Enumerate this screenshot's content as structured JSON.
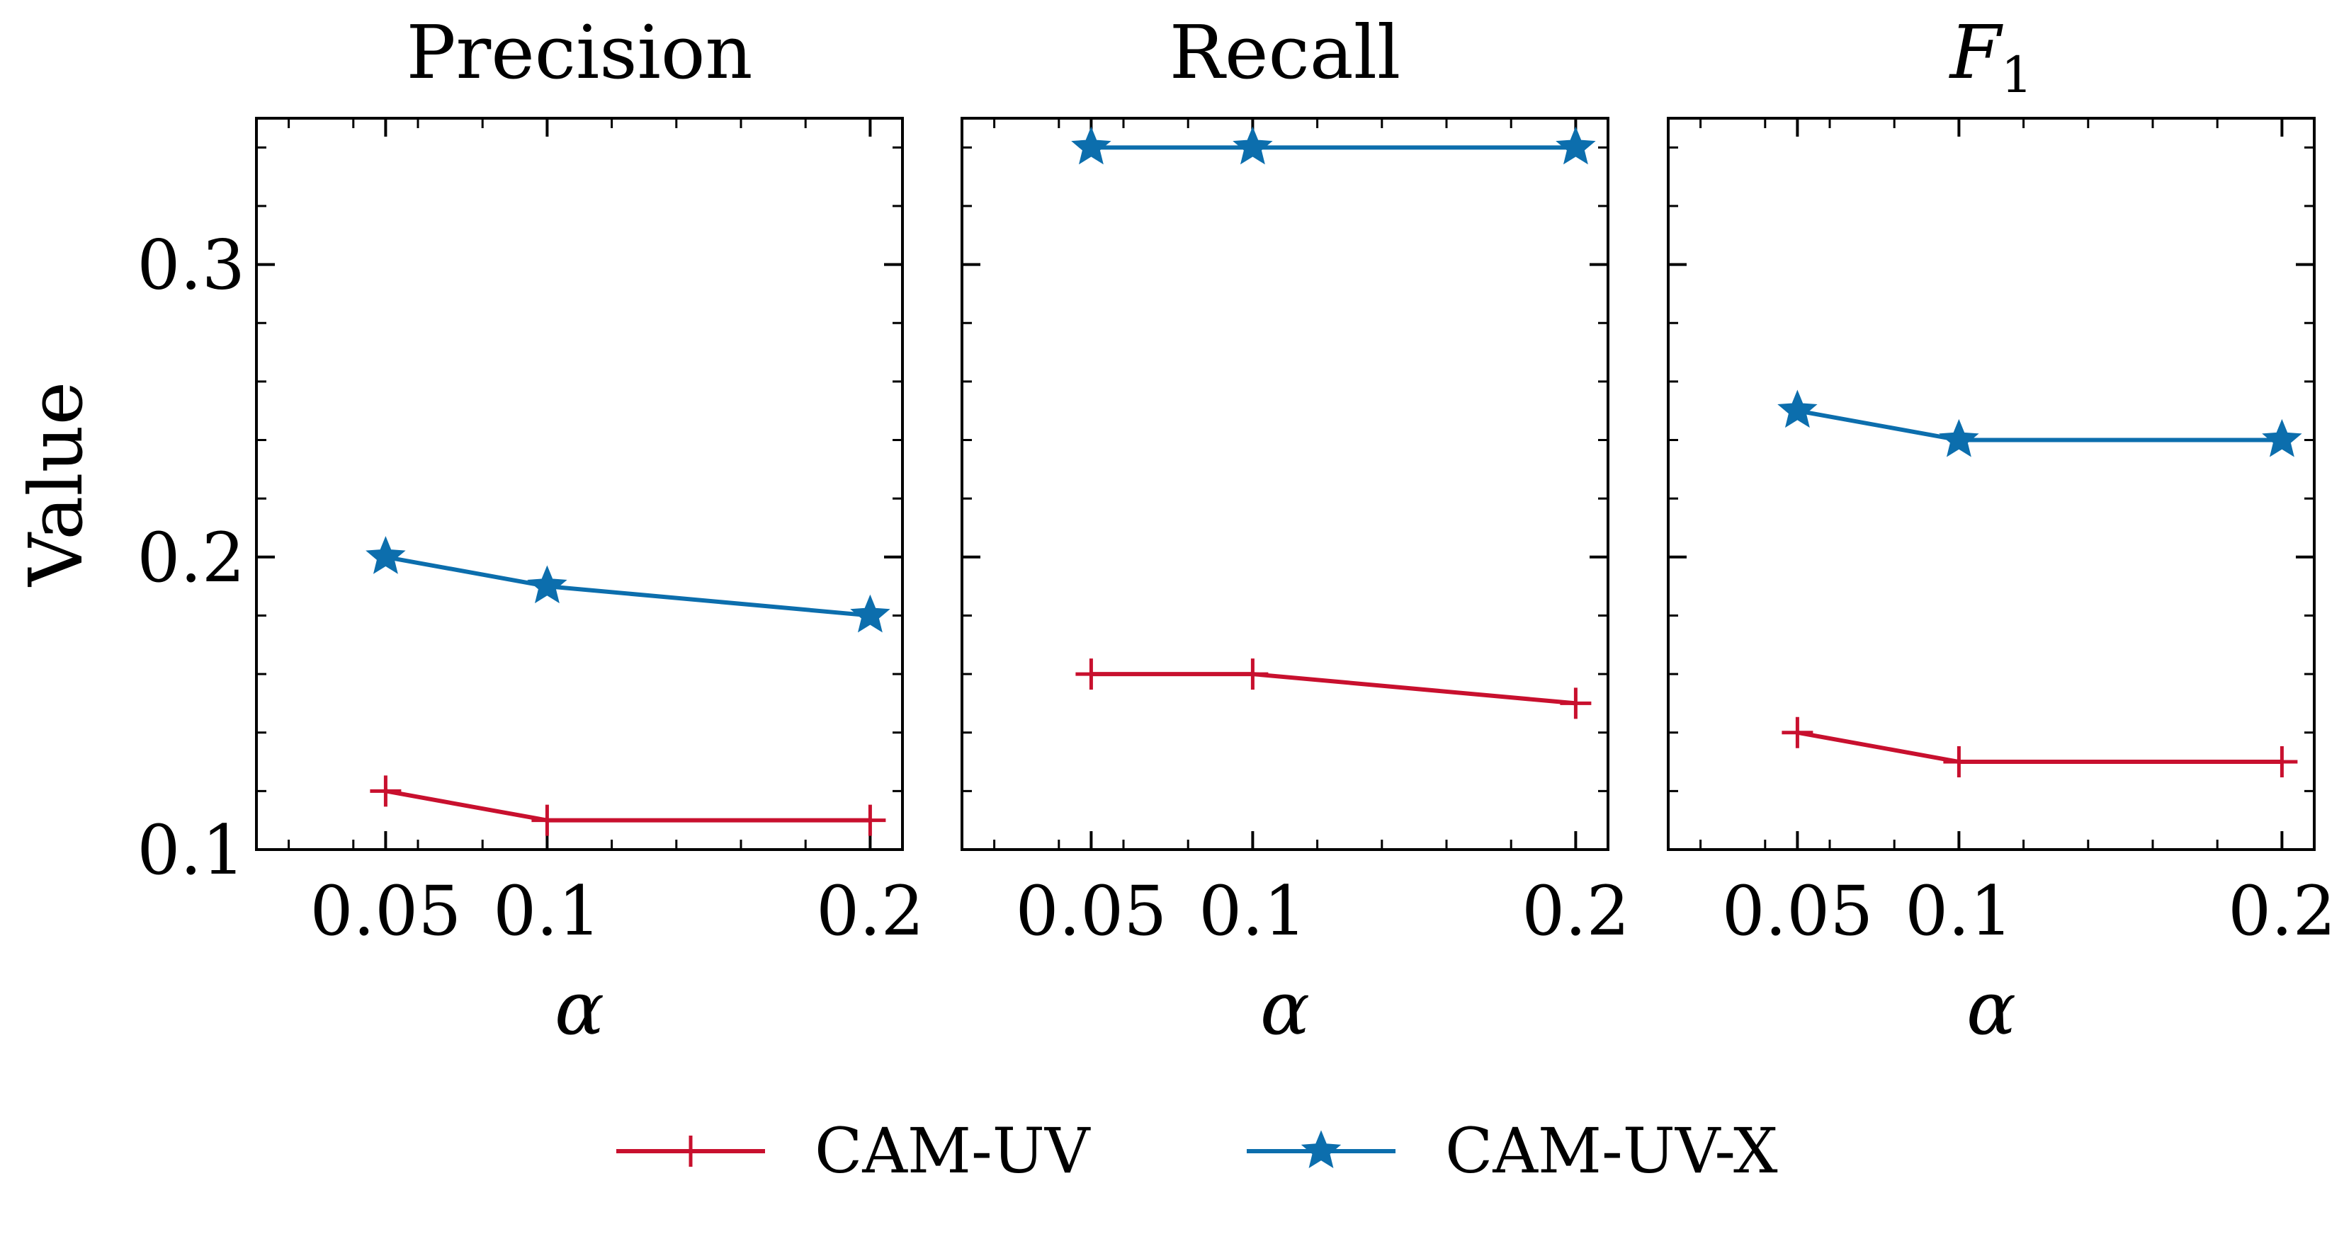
{
  "chart_data": [
    {
      "type": "line",
      "title": "Precision",
      "title_parts": null,
      "xlabel": "α",
      "ylabel": "Value",
      "x": [
        0.05,
        0.1,
        0.2
      ],
      "x_tick_labels": [
        "0.05",
        "0.1",
        "0.2"
      ],
      "xlim": [
        0.01,
        0.21
      ],
      "ylim": [
        0.1,
        0.35
      ],
      "y_ticks": [
        0.1,
        0.2,
        0.3
      ],
      "y_tick_labels": [
        "0.1",
        "0.2",
        "0.3"
      ],
      "series": [
        {
          "name": "CAM-UV",
          "values": [
            0.12,
            0.11,
            0.11
          ],
          "color": "#c8102e",
          "marker": "plus"
        },
        {
          "name": "CAM-UV-X",
          "values": [
            0.2,
            0.19,
            0.18
          ],
          "color": "#0c6ead",
          "marker": "star"
        }
      ]
    },
    {
      "type": "line",
      "title": "Recall",
      "xlabel": "α",
      "ylabel": "",
      "x": [
        0.05,
        0.1,
        0.2
      ],
      "x_tick_labels": [
        "0.05",
        "0.1",
        "0.2"
      ],
      "xlim": [
        0.01,
        0.21
      ],
      "ylim": [
        0.1,
        0.35
      ],
      "y_ticks": [
        0.1,
        0.2,
        0.3
      ],
      "series": [
        {
          "name": "CAM-UV",
          "values": [
            0.16,
            0.16,
            0.15
          ],
          "color": "#c8102e",
          "marker": "plus"
        },
        {
          "name": "CAM-UV-X",
          "values": [
            0.34,
            0.34,
            0.34
          ],
          "color": "#0c6ead",
          "marker": "star"
        }
      ]
    },
    {
      "type": "line",
      "title": "F",
      "title_subscript": "1",
      "xlabel": "α",
      "ylabel": "",
      "x": [
        0.05,
        0.1,
        0.2
      ],
      "x_tick_labels": [
        "0.05",
        "0.1",
        "0.2"
      ],
      "xlim": [
        0.01,
        0.21
      ],
      "ylim": [
        0.1,
        0.35
      ],
      "y_ticks": [
        0.1,
        0.2,
        0.3
      ],
      "series": [
        {
          "name": "CAM-UV",
          "values": [
            0.14,
            0.13,
            0.13
          ],
          "color": "#c8102e",
          "marker": "plus"
        },
        {
          "name": "CAM-UV-X",
          "values": [
            0.25,
            0.24,
            0.24
          ],
          "color": "#0c6ead",
          "marker": "star"
        }
      ]
    }
  ],
  "legend": {
    "position": "bottom-center",
    "items": [
      {
        "label": "CAM-UV",
        "color": "#c8102e",
        "marker": "plus"
      },
      {
        "label": "CAM-UV-X",
        "color": "#0c6ead",
        "marker": "star"
      }
    ]
  }
}
